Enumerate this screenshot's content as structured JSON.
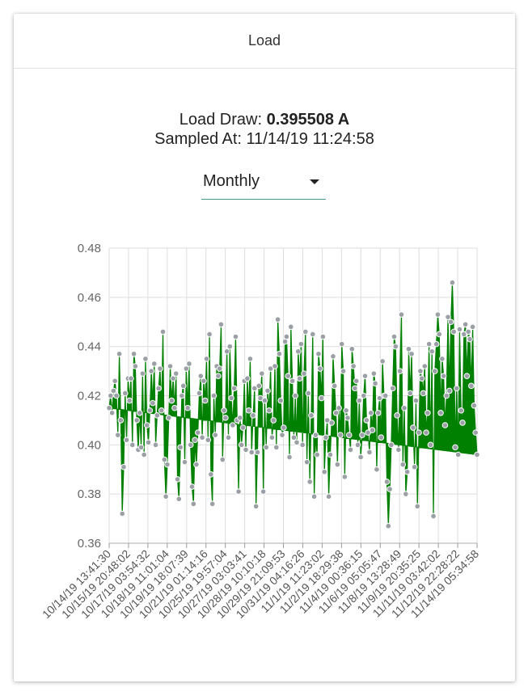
{
  "card": {
    "title": "Load"
  },
  "reading": {
    "label": "Load Draw:",
    "value": "0.395508 A",
    "sampled_label": "Sampled At:",
    "sampled_value": "11/14/19 11:24:58"
  },
  "range_select": {
    "selected": "Monthly"
  },
  "colors": {
    "fill": "#008000",
    "point": "#9aa0a6",
    "point_stroke": "#ffffff",
    "grid": "#dddddd",
    "underline": "#3f9b91"
  },
  "chart_data": {
    "type": "area",
    "title": "",
    "xlabel": "",
    "ylabel": "",
    "ylim": [
      0.36,
      0.48
    ],
    "yticks": [
      0.36,
      0.38,
      0.4,
      0.42,
      0.44,
      0.46,
      0.48
    ],
    "grid": true,
    "x_tick_labels": [
      "10/14/19 13:41:30",
      "10/15/19 20:48:02",
      "10/17/19 03:54:32",
      "10/18/19 11:01:04",
      "10/19/19 18:07:39",
      "10/21/19 01:14:16",
      "10/25/19 19:57:04",
      "10/27/19 03:03:41",
      "10/28/19 10:10:18",
      "10/29/19 21:09:53",
      "10/31/19 04:16:26",
      "11/1/19 11:23:02",
      "11/2/19 18:29:38",
      "11/4/19 00:36:15",
      "11/6/19 05:05:47",
      "11/8/19 13:28:49",
      "11/9/19 20:35:25",
      "11/11/19 03:42:02",
      "11/12/19 22:28:22",
      "11/14/19 05:34:58"
    ],
    "values": [
      0.415,
      0.42,
      0.413,
      0.422,
      0.426,
      0.42,
      0.404,
      0.437,
      0.41,
      0.372,
      0.391,
      0.421,
      0.402,
      0.427,
      0.418,
      0.427,
      0.4,
      0.437,
      0.432,
      0.41,
      0.398,
      0.413,
      0.399,
      0.429,
      0.396,
      0.435,
      0.408,
      0.401,
      0.414,
      0.43,
      0.417,
      0.433,
      0.4,
      0.412,
      0.423,
      0.431,
      0.414,
      0.446,
      0.394,
      0.379,
      0.392,
      0.411,
      0.432,
      0.418,
      0.427,
      0.415,
      0.429,
      0.386,
      0.378,
      0.399,
      0.42,
      0.424,
      0.393,
      0.431,
      0.415,
      0.433,
      0.4,
      0.383,
      0.376,
      0.402,
      0.392,
      0.405,
      0.421,
      0.428,
      0.403,
      0.426,
      0.418,
      0.435,
      0.402,
      0.445,
      0.388,
      0.376,
      0.42,
      0.404,
      0.432,
      0.428,
      0.431,
      0.449,
      0.394,
      0.414,
      0.411,
      0.438,
      0.403,
      0.44,
      0.419,
      0.408,
      0.423,
      0.444,
      0.41,
      0.381,
      0.411,
      0.4,
      0.407,
      0.426,
      0.398,
      0.427,
      0.414,
      0.435,
      0.397,
      0.412,
      0.423,
      0.375,
      0.397,
      0.424,
      0.419,
      0.429,
      0.381,
      0.418,
      0.399,
      0.422,
      0.414,
      0.431,
      0.403,
      0.41,
      0.432,
      0.399,
      0.451,
      0.437,
      0.418,
      0.404,
      0.407,
      0.442,
      0.444,
      0.428,
      0.395,
      0.448,
      0.426,
      0.403,
      0.42,
      0.401,
      0.438,
      0.427,
      0.441,
      0.4,
      0.429,
      0.446,
      0.393,
      0.421,
      0.385,
      0.412,
      0.445,
      0.379,
      0.404,
      0.396,
      0.437,
      0.431,
      0.419,
      0.444,
      0.389,
      0.403,
      0.41,
      0.379,
      0.396,
      0.409,
      0.436,
      0.424,
      0.413,
      0.392,
      0.415,
      0.404,
      0.441,
      0.43,
      0.387,
      0.414,
      0.411,
      0.404,
      0.398,
      0.439,
      0.432,
      0.423,
      0.426,
      0.4,
      0.418,
      0.395,
      0.404,
      0.42,
      0.428,
      0.41,
      0.405,
      0.397,
      0.413,
      0.406,
      0.429,
      0.425,
      0.39,
      0.413,
      0.419,
      0.403,
      0.434,
      0.42,
      0.42,
      0.385,
      0.367,
      0.382,
      0.4,
      0.423,
      0.444,
      0.44,
      0.412,
      0.398,
      0.43,
      0.453,
      0.392,
      0.415,
      0.38,
      0.389,
      0.439,
      0.421,
      0.437,
      0.407,
      0.391,
      0.418,
      0.375,
      0.405,
      0.43,
      0.427,
      0.421,
      0.432,
      0.405,
      0.413,
      0.441,
      0.4,
      0.438,
      0.371,
      0.43,
      0.441,
      0.453,
      0.445,
      0.413,
      0.435,
      0.428,
      0.408,
      0.42,
      0.452,
      0.422,
      0.45,
      0.466,
      0.446,
      0.399,
      0.423,
      0.396,
      0.447,
      0.414,
      0.409,
      0.445,
      0.449,
      0.428,
      0.446,
      0.443,
      0.424,
      0.448,
      0.416,
      0.405,
      0.396
    ],
    "current": 0.395508
  }
}
